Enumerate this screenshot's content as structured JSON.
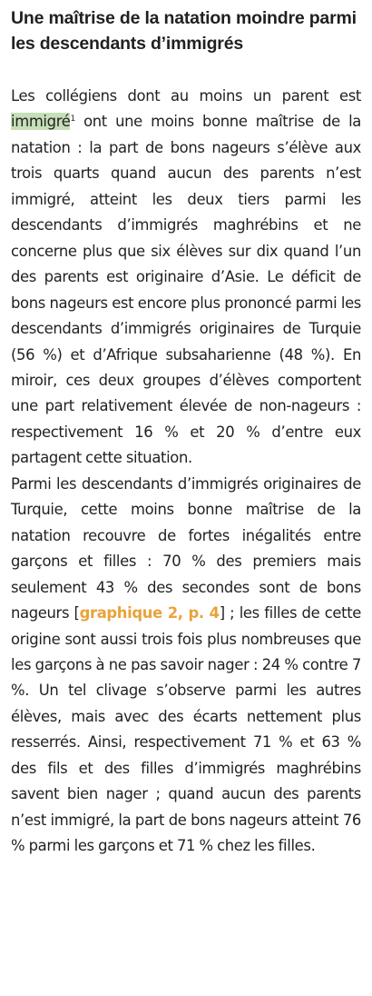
{
  "title": "Une maîtrise de la natation moindre parmi les descendants d’immigrés",
  "p1": {
    "a": "Les collégiens dont au moins un parent est ",
    "highlight": "immigré",
    "note": "1",
    "b": " ont une moins bonne maîtrise de la natation : la part de bons nageurs s’élève aux trois quarts quand aucun des parents n’est immigré, atteint les deux tiers parmi les descendants d’immigrés maghrébins et ne concerne plus que six élèves sur dix quand l’un des parents est originaire d’Asie. Le déficit de bons nageurs est encore plus prononcé parmi les descendants d’immigrés originaires de Turquie (56 %) et d’Afrique subsaharienne (48 %). En miroir, ces deux groupes d’élèves comportent une part relativement élevée de non-nageurs : respectivement 16 % et 20 % d’entre eux partagent cette situation."
  },
  "p2": {
    "a": "Parmi les descendants d’immigrés originaires de Turquie, cette moins bonne maîtrise de la natation recouvre de fortes inégalités entre garçons et filles : 70 % des premiers mais seulement 43 % des secondes sont de bons nageurs [",
    "link": "graphique 2, p. 4",
    "b": "] ; les filles de cette origine sont aussi trois fois plus nombreuses que les garçons à ne pas savoir nager : 24 % contre 7 %. Un tel clivage s’observe parmi les autres élèves, mais avec des écarts nettement plus resserrés. Ainsi, respectivement 71 % et 63 % des fils et des filles d’immigrés maghrébins savent bien nager ; quand aucun des parents n’est immigré, la part de bons nageurs atteint 76 % parmi les garçons et 71 % chez les filles."
  }
}
